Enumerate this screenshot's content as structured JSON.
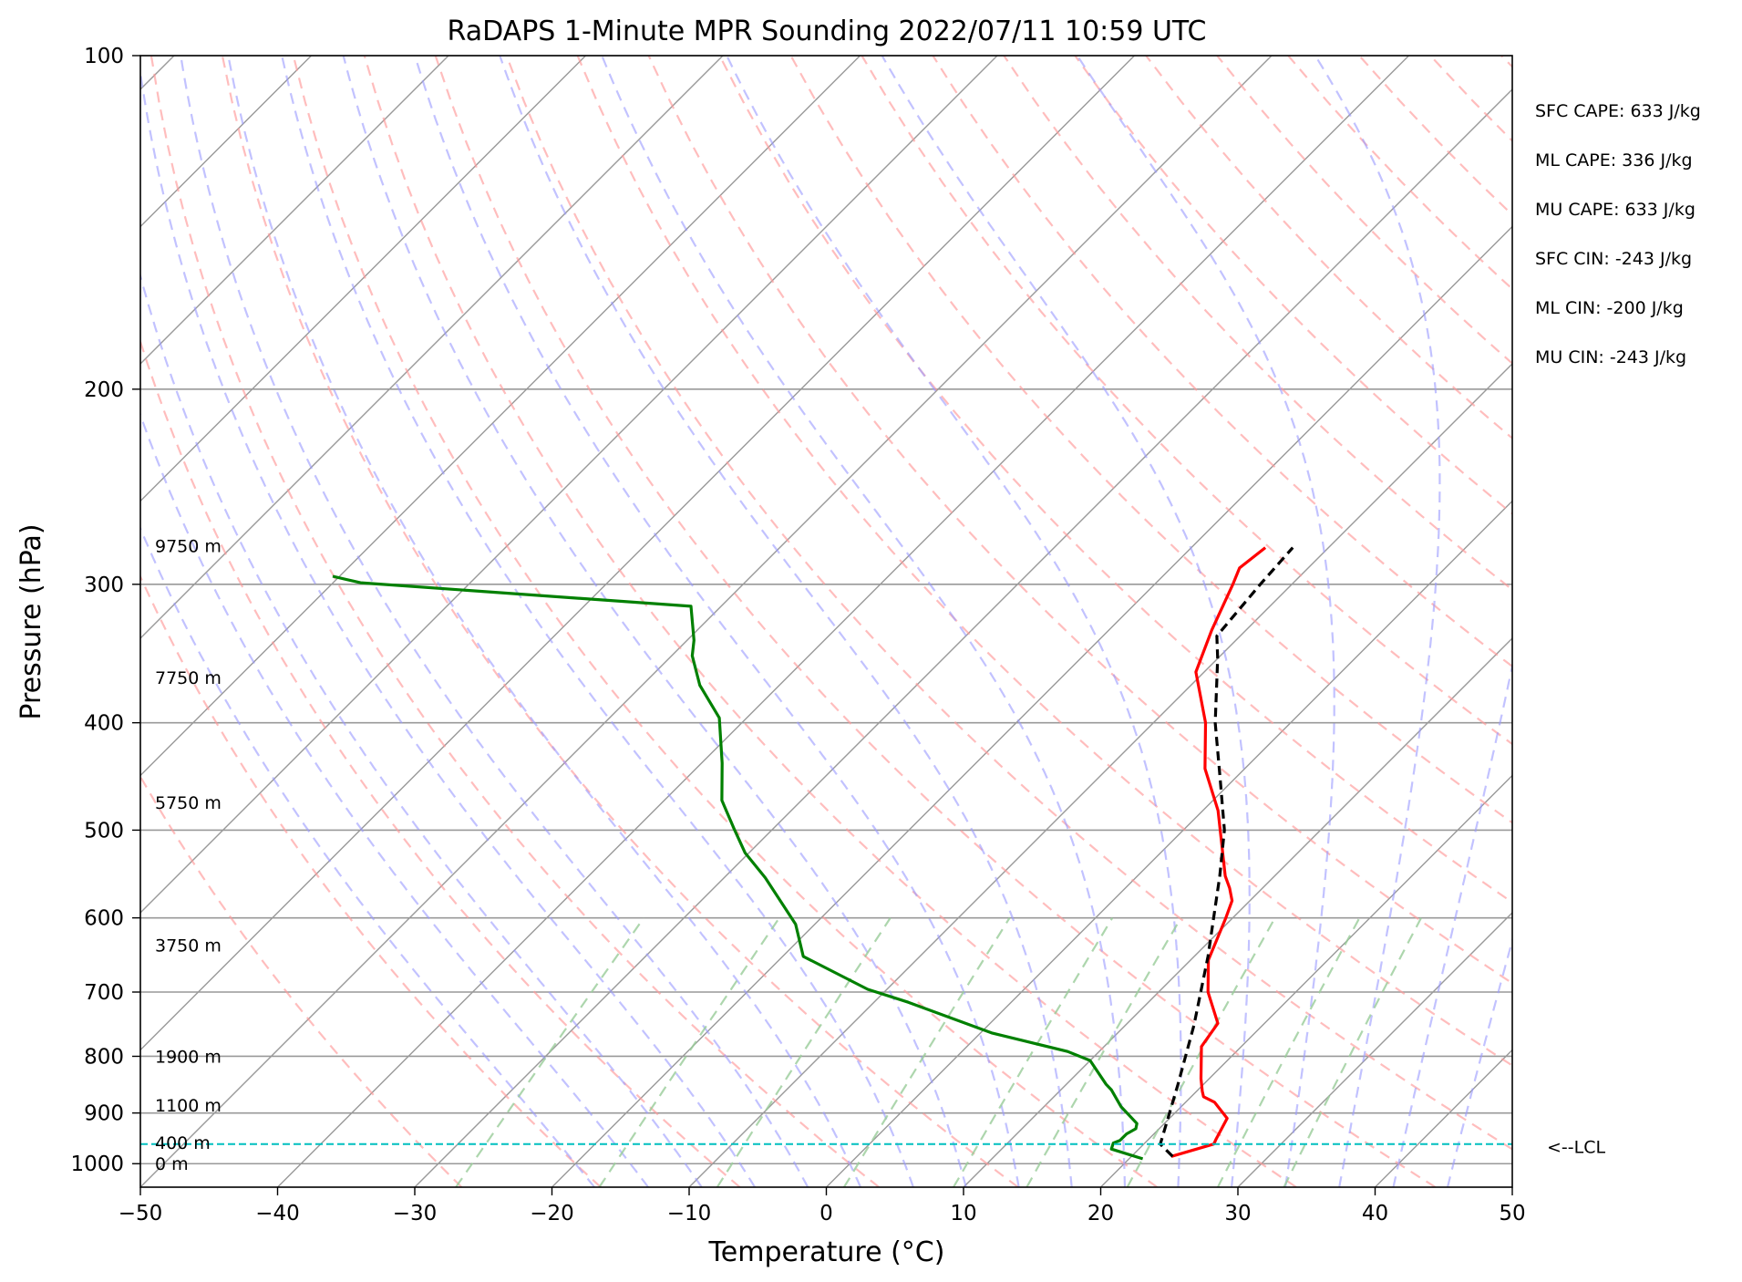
{
  "chart_data": {
    "type": "line",
    "title": "RaDAPS 1-Minute MPR Sounding 2022/07/11 10:59 UTC",
    "xlabel": "Temperature (°C)",
    "ylabel": "Pressure (hPa)",
    "xlim": [
      -50,
      50
    ],
    "ylim": [
      1050,
      100
    ],
    "y_scale": "log",
    "x_ticks": [
      "−50",
      "−40",
      "−30",
      "−20",
      "−10",
      "0",
      "10",
      "20",
      "30",
      "40",
      "50"
    ],
    "y_ticks": [
      "100",
      "200",
      "300",
      "400",
      "500",
      "600",
      "700",
      "800",
      "900",
      "1000"
    ],
    "grid": true,
    "colors": {
      "temperature": "#ff0000",
      "dewpoint": "#008000",
      "parcel": "#000000",
      "lcl": "#00bfbf",
      "dry_adiabats": "#ff9999",
      "moist_adiabats": "#9999ff",
      "mixing_ratio": "#99cc99",
      "isotherms": "#999999"
    },
    "series": [
      {
        "role": "temperature",
        "points": [
          {
            "t": 22.9,
            "p": 985
          },
          {
            "t": 25.1,
            "p": 960
          },
          {
            "t": 24.9,
            "p": 950
          },
          {
            "t": 24.2,
            "p": 910
          },
          {
            "t": 22.1,
            "p": 880
          },
          {
            "t": 20.9,
            "p": 870
          },
          {
            "t": 20.4,
            "p": 860
          },
          {
            "t": 19.4,
            "p": 838
          },
          {
            "t": 17.1,
            "p": 784
          },
          {
            "t": 16.6,
            "p": 747
          },
          {
            "t": 13.6,
            "p": 700
          },
          {
            "t": 11.3,
            "p": 655
          },
          {
            "t": 9.5,
            "p": 600
          },
          {
            "t": 8.7,
            "p": 579
          },
          {
            "t": 7.6,
            "p": 564
          },
          {
            "t": 6.4,
            "p": 550
          },
          {
            "t": 1.1,
            "p": 480
          },
          {
            "t": -2.9,
            "p": 440
          },
          {
            "t": -6.2,
            "p": 400
          },
          {
            "t": -10.6,
            "p": 360
          },
          {
            "t": -12.5,
            "p": 330
          },
          {
            "t": -14.3,
            "p": 300
          },
          {
            "t": -15.0,
            "p": 290
          },
          {
            "t": -14.6,
            "p": 278
          }
        ]
      },
      {
        "role": "dewpoint",
        "points": [
          {
            "t": 21.0,
            "p": 990
          },
          {
            "t": 18.0,
            "p": 970
          },
          {
            "t": 17.7,
            "p": 958
          },
          {
            "t": 18.0,
            "p": 953
          },
          {
            "t": 18.0,
            "p": 940
          },
          {
            "t": 18.3,
            "p": 930
          },
          {
            "t": 18.0,
            "p": 920
          },
          {
            "t": 15.6,
            "p": 888
          },
          {
            "t": 13.7,
            "p": 858
          },
          {
            "t": 12.9,
            "p": 848
          },
          {
            "t": 10.0,
            "p": 807
          },
          {
            "t": 7.7,
            "p": 792
          },
          {
            "t": 0.8,
            "p": 762
          },
          {
            "t": -7.5,
            "p": 715
          },
          {
            "t": -11.4,
            "p": 696
          },
          {
            "t": -18.5,
            "p": 650
          },
          {
            "t": -21.4,
            "p": 608
          },
          {
            "t": -27.0,
            "p": 552
          },
          {
            "t": -30.3,
            "p": 524
          },
          {
            "t": -32.9,
            "p": 498
          },
          {
            "t": -35.8,
            "p": 470
          },
          {
            "t": -38.5,
            "p": 435
          },
          {
            "t": -42.0,
            "p": 396
          },
          {
            "t": -45.8,
            "p": 370
          },
          {
            "t": -48.5,
            "p": 348
          },
          {
            "t": -49.5,
            "p": 337
          },
          {
            "t": -52.2,
            "p": 314
          },
          {
            "t": -67.6,
            "p": 305
          },
          {
            "t": -78.0,
            "p": 299
          },
          {
            "t": -80.5,
            "p": 295
          }
        ]
      },
      {
        "role": "parcel",
        "points": [
          {
            "t": 23.0,
            "p": 985
          },
          {
            "t": 21.2,
            "p": 960
          },
          {
            "t": 18.2,
            "p": 850
          },
          {
            "t": 15.0,
            "p": 750
          },
          {
            "t": 11.0,
            "p": 650
          },
          {
            "t": 6.0,
            "p": 550
          },
          {
            "t": 3.0,
            "p": 500
          },
          {
            "t": -1.0,
            "p": 450
          },
          {
            "t": -5.5,
            "p": 400
          },
          {
            "t": -10.0,
            "p": 350
          },
          {
            "t": -11.7,
            "p": 334
          },
          {
            "t": -12.3,
            "p": 300
          },
          {
            "t": -12.6,
            "p": 278
          }
        ]
      }
    ],
    "lcl": {
      "p": 960,
      "label": "<--LCL"
    },
    "height_labels": [
      {
        "text": "9750 m",
        "p": 277
      },
      {
        "text": "7750 m",
        "p": 364
      },
      {
        "text": "5750 m",
        "p": 472
      },
      {
        "text": "3750 m",
        "p": 635
      },
      {
        "text": "1900 m",
        "p": 800
      },
      {
        "text": "1100 m",
        "p": 885
      },
      {
        "text": "400 m",
        "p": 957
      },
      {
        "text": "0 m",
        "p": 1000
      }
    ],
    "stats": [
      "SFC CAPE: 633 J/kg",
      "ML CAPE: 336 J/kg",
      "MU CAPE: 633 J/kg",
      "SFC CIN: -243 J/kg",
      "ML CIN: -200 J/kg",
      "MU CIN: -243 J/kg"
    ]
  }
}
